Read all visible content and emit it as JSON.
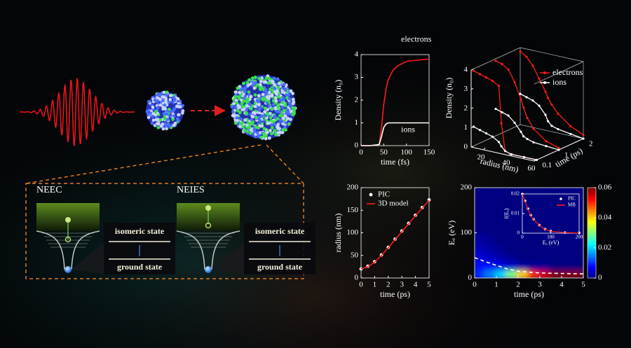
{
  "diagram": {
    "panels": [
      {
        "title": "NEEC",
        "upper_state": "isomeric state",
        "lower_state": "ground state"
      },
      {
        "title": "NEIES",
        "upper_state": "isomeric state",
        "lower_state": "ground state"
      }
    ]
  },
  "chart_data": [
    {
      "type": "line",
      "xlabel": "time (fs)",
      "ylabel": "Density (n₀)",
      "xlim": [
        0,
        150
      ],
      "xticks": [
        0,
        50,
        100,
        150
      ],
      "ylim": [
        0,
        4
      ],
      "yticks": [
        0,
        1,
        2,
        3,
        4
      ],
      "x": [
        0,
        20,
        40,
        45,
        50,
        55,
        60,
        70,
        80,
        100,
        120,
        150
      ],
      "series": [
        {
          "name": "electrons",
          "color": "#ff1a1a",
          "values": [
            0,
            0,
            0.05,
            0.8,
            1.8,
            2.5,
            2.9,
            3.3,
            3.5,
            3.7,
            3.75,
            3.8
          ]
        },
        {
          "name": "ions",
          "color": "#ffffff",
          "values": [
            0,
            0,
            0.05,
            0.4,
            0.8,
            0.95,
            1.0,
            1.0,
            1.0,
            1.0,
            1.0,
            1.0
          ]
        }
      ]
    },
    {
      "type": "line3d",
      "xlabel": "radius (nm)",
      "ylabel": "time (ps)",
      "zlabel": "Density (n₀)",
      "xlim": [
        10,
        60
      ],
      "xticks": [
        20,
        40,
        60
      ],
      "ylim": [
        0,
        2
      ],
      "yticks": [
        0.1,
        1,
        2
      ],
      "zlim": [
        0,
        4
      ],
      "zticks": [
        0,
        1,
        2,
        3,
        4
      ],
      "x": [
        10,
        15,
        20,
        25,
        30,
        32,
        35,
        40,
        50,
        60
      ],
      "series": [
        {
          "name": "electrons",
          "color": "#ff1a1a",
          "times": [
            0.1,
            1,
            2
          ],
          "values": [
            [
              3.9,
              3.8,
              3.7,
              3.6,
              3.4,
              1.5,
              0.1,
              0,
              0,
              0
            ],
            [
              3.9,
              3.8,
              3.6,
              3.0,
              2.2,
              1.8,
              1.3,
              0.8,
              0.3,
              0.1
            ],
            [
              3.8,
              3.6,
              3.2,
              2.6,
              2.0,
              1.7,
              1.4,
              1.0,
              0.5,
              0.2
            ]
          ]
        },
        {
          "name": "ions",
          "color": "#ffffff",
          "times": [
            0.1,
            1,
            2
          ],
          "values": [
            [
              1.0,
              0.9,
              0.8,
              0.7,
              0.5,
              0.3,
              0.1,
              0,
              0,
              0
            ],
            [
              1.4,
              1.3,
              1.2,
              0.9,
              0.5,
              0.3,
              0.2,
              0.1,
              0.05,
              0
            ],
            [
              1.6,
              1.5,
              1.4,
              1.2,
              0.8,
              0.5,
              0.3,
              0.2,
              0.1,
              0
            ]
          ]
        }
      ]
    },
    {
      "type": "line",
      "xlabel": "time (ps)",
      "ylabel": "radius (nm)",
      "legend": "upper left",
      "xlim": [
        0,
        5
      ],
      "xticks": [
        0,
        1,
        2,
        3,
        4,
        5
      ],
      "ylim": [
        0,
        200
      ],
      "yticks": [
        0,
        50,
        100,
        150,
        200
      ],
      "x": [
        0,
        0.5,
        1,
        1.5,
        2,
        2.5,
        3,
        3.5,
        4,
        4.5,
        5
      ],
      "series": [
        {
          "name": "PIC",
          "color": "#ffffff",
          "mode": "markers",
          "values": [
            20,
            26,
            36,
            51,
            68,
            86,
            104,
            121,
            139,
            156,
            173
          ]
        },
        {
          "name": "3D model",
          "color": "#ff1a1a",
          "mode": "lines",
          "values": [
            20,
            25,
            35,
            50,
            67,
            85,
            103,
            120,
            138,
            155,
            172
          ]
        }
      ]
    },
    {
      "type": "heatmap",
      "xlabel": "time (ps)",
      "ylabel": "Eₑ (eV)",
      "xlim": [
        0,
        5
      ],
      "xticks": [
        0,
        1,
        2,
        3,
        4,
        5
      ],
      "ylim": [
        0,
        200
      ],
      "yticks": [
        0,
        100,
        200
      ],
      "xedges": [
        0,
        0.5,
        1,
        1.5,
        2,
        2.5,
        3,
        3.5,
        4,
        4.5,
        5
      ],
      "yedges": [
        0,
        20,
        40,
        60,
        80,
        100,
        120,
        140,
        160,
        180,
        200
      ],
      "z": [
        [
          0.01,
          0.015,
          0.02,
          0.03,
          0.04,
          0.05,
          0.055,
          0.06,
          0.06,
          0.06
        ],
        [
          0.008,
          0.008,
          0.006,
          0.004,
          0.002,
          0.001,
          0.001,
          0,
          0,
          0
        ],
        [
          0.005,
          0.004,
          0.002,
          0.001,
          0,
          0,
          0,
          0,
          0,
          0
        ],
        [
          0.003,
          0.002,
          0.001,
          0,
          0,
          0,
          0,
          0,
          0,
          0
        ],
        [
          0.002,
          0.001,
          0,
          0,
          0,
          0,
          0,
          0,
          0,
          0
        ],
        [
          0,
          0,
          0,
          0,
          0,
          0,
          0,
          0,
          0,
          0
        ],
        [
          0,
          0,
          0,
          0,
          0,
          0,
          0,
          0,
          0,
          0
        ],
        [
          0,
          0,
          0,
          0,
          0,
          0,
          0,
          0,
          0,
          0
        ],
        [
          0,
          0,
          0,
          0,
          0,
          0,
          0,
          0,
          0,
          0
        ],
        [
          0,
          0,
          0,
          0,
          0,
          0,
          0,
          0,
          0,
          0
        ]
      ],
      "clim": [
        0,
        0.06
      ],
      "cticks": [
        0,
        0.02,
        0.04,
        0.06
      ],
      "series": [
        {
          "color": "#ffffff",
          "dash": true,
          "x": [
            0,
            0.5,
            1,
            1.5,
            2,
            3,
            4,
            5
          ],
          "values": [
            45,
            36,
            28,
            20,
            15,
            11,
            10,
            9
          ]
        }
      ]
    },
    {
      "type": "line",
      "xlabel": "Eₑ (eV)",
      "ylabel": "f(Eₑ)",
      "legend": "upper right",
      "xlim": [
        0,
        200
      ],
      "xticks": [
        0,
        100,
        200
      ],
      "ylim": [
        0,
        0.02
      ],
      "yticks": [
        0,
        0.01,
        0.02
      ],
      "x": [
        0,
        10,
        20,
        30,
        40,
        60,
        80,
        100,
        150,
        200
      ],
      "series": [
        {
          "name": "PIC",
          "color": "#ffffff",
          "mode": "markers",
          "values": [
            0.02,
            0.0165,
            0.0125,
            0.0092,
            0.0071,
            0.0041,
            0.0021,
            0.0011,
            0.0003,
            0.0001
          ]
        },
        {
          "name": "MB",
          "color": "#ff1a1a",
          "mode": "lines",
          "values": [
            0.02,
            0.016,
            0.012,
            0.009,
            0.007,
            0.004,
            0.002,
            0.001,
            0.0003,
            0.0001
          ]
        }
      ]
    }
  ]
}
